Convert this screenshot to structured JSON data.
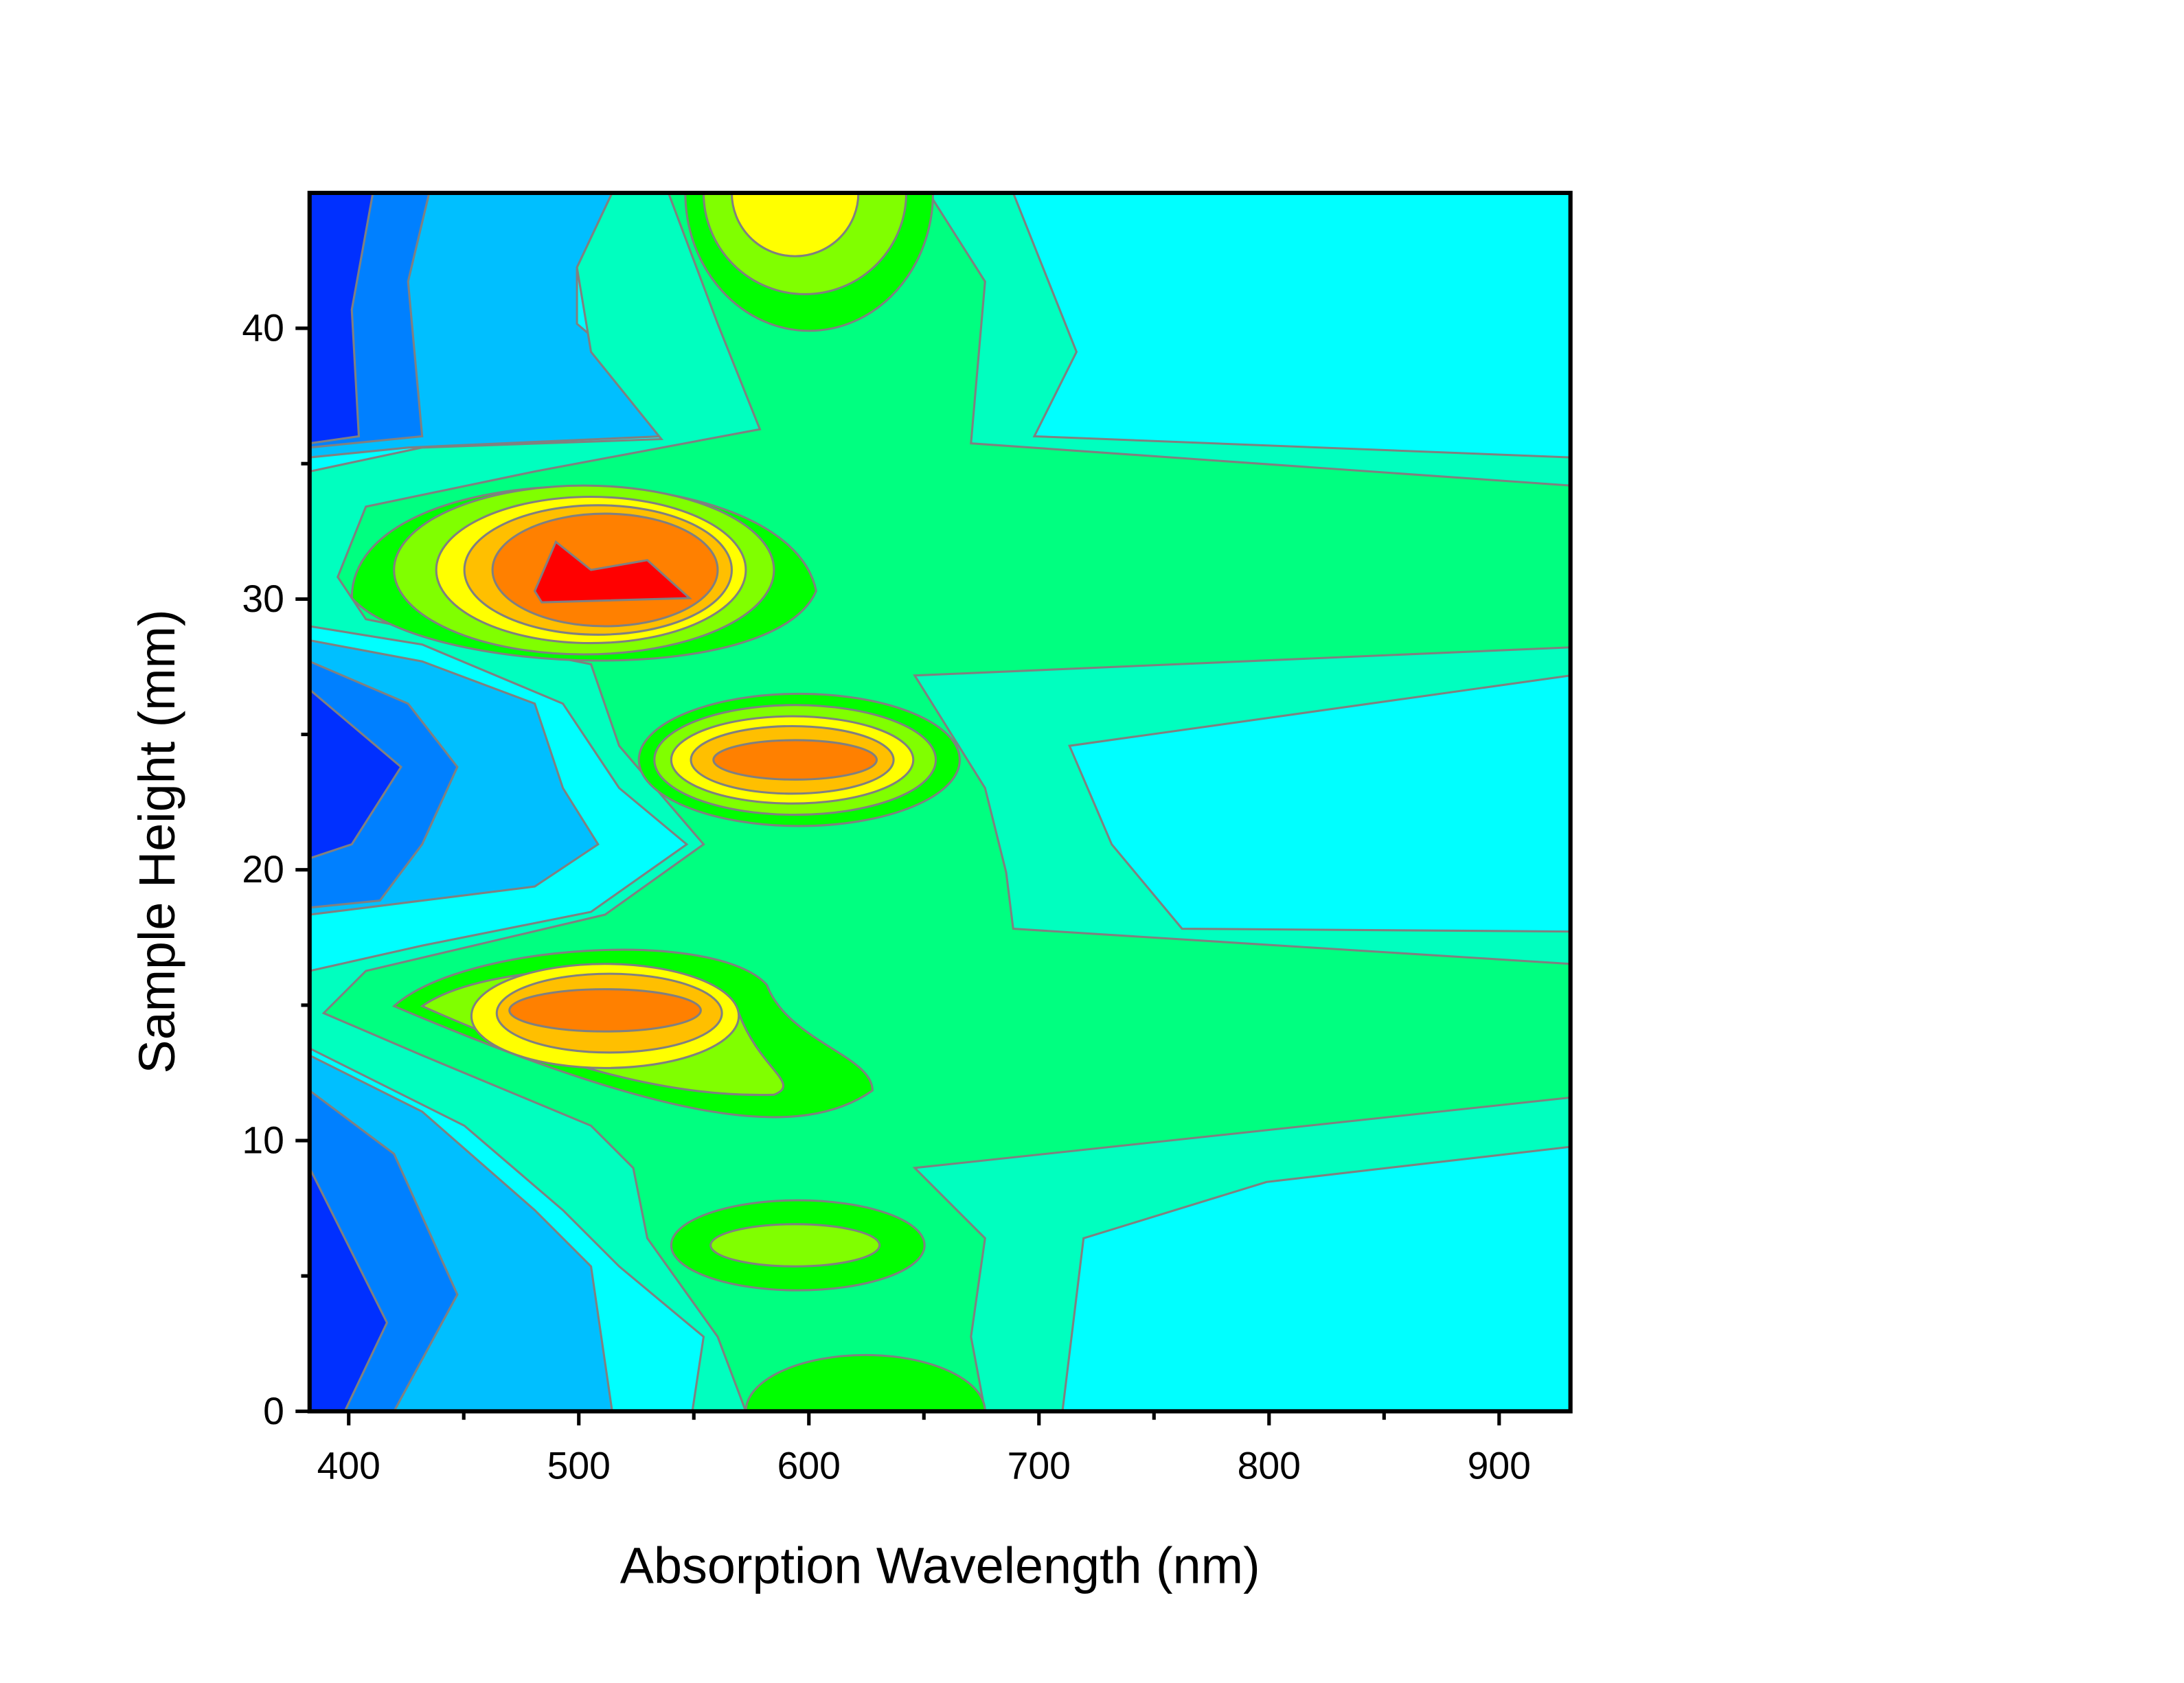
{
  "chart_data": {
    "type": "contour",
    "x_label": "Absorption Wavelength (nm)",
    "y_label": "Sample Height (mm)",
    "xlim": [
      383,
      931
    ],
    "xticks": [
      400,
      500,
      600,
      700,
      800,
      900
    ],
    "ylim": [
      0,
      45
    ],
    "yticks": [
      0,
      10,
      20,
      30,
      40
    ],
    "colors": [
      "#00ffff",
      "#00bfff",
      "#0080ff",
      "#0030ff",
      "#00ffbf",
      "#00ff80",
      "#00ff00",
      "#80ff00",
      "#ffff00",
      "#ffbf00",
      "#ff8000",
      "#ff0000"
    ],
    "line_color": "#808080"
  }
}
